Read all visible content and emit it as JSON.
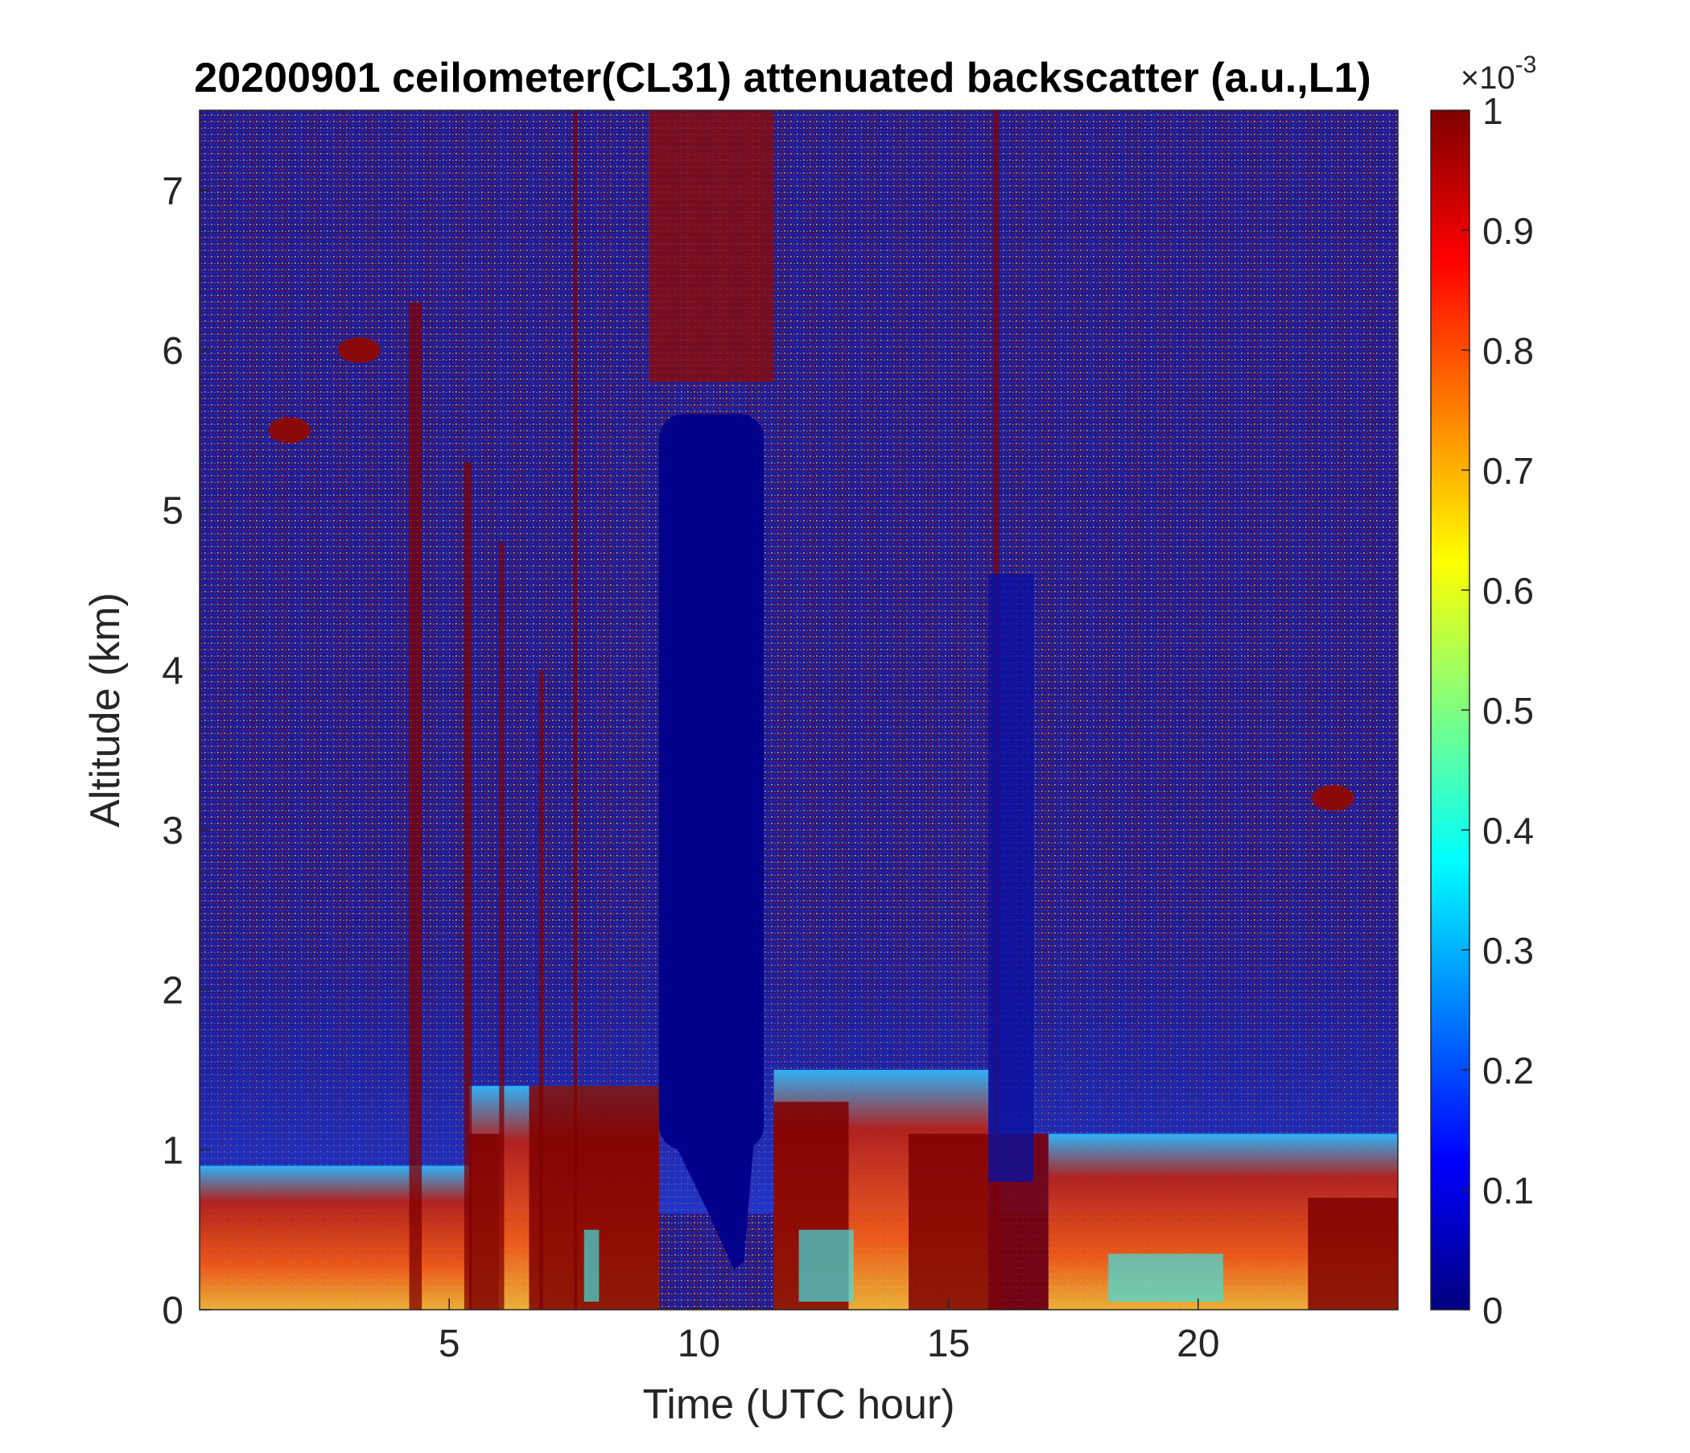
{
  "chart_data": {
    "type": "heatmap",
    "title": "20200901 ceilometer(CL31) attenuated backscatter (a.u.,L1)",
    "xlabel": "Time (UTC hour)",
    "ylabel": "Altitude (km)",
    "xlim": [
      0,
      24
    ],
    "ylim": [
      0,
      7.5
    ],
    "xticks": [
      5,
      10,
      15,
      20
    ],
    "yticks": [
      0,
      1,
      2,
      3,
      4,
      5,
      6,
      7
    ],
    "colorbar": {
      "range": [
        0,
        1
      ],
      "ticks": [
        0,
        0.1,
        0.2,
        0.3,
        0.4,
        0.5,
        0.6,
        0.7,
        0.8,
        0.9,
        1
      ],
      "multiplier_base": "×10",
      "multiplier_exponent": "-3",
      "colormap": [
        "#00007f",
        "#0000ff",
        "#007fff",
        "#00ffff",
        "#7fff7f",
        "#ffff00",
        "#ff7f00",
        "#ff0000",
        "#7f0000"
      ]
    },
    "features": {
      "clear_column": {
        "x": [
          9.2,
          11.3
        ],
        "y_top": 5.6
      },
      "thin_clear_column": {
        "x": [
          15.8,
          16.7
        ],
        "y_top": 4.6
      },
      "upper_noise_band": {
        "x": [
          9.0,
          11.5
        ],
        "y_bottom": 5.8
      },
      "near_surface_layers": [
        {
          "x": [
            0,
            5.4
          ],
          "top": 0.9
        },
        {
          "x": [
            5.4,
            9.2
          ],
          "top": 1.4
        },
        {
          "x": [
            11.5,
            15.8
          ],
          "top": 1.5
        },
        {
          "x": [
            17,
            24
          ],
          "top": 1.1
        }
      ],
      "elevated_aerosol_blobs": [
        {
          "x": 1.8,
          "y": 5.5
        },
        {
          "x": 3.2,
          "y": 6.0
        },
        {
          "x": 22.7,
          "y": 3.2
        }
      ]
    }
  }
}
